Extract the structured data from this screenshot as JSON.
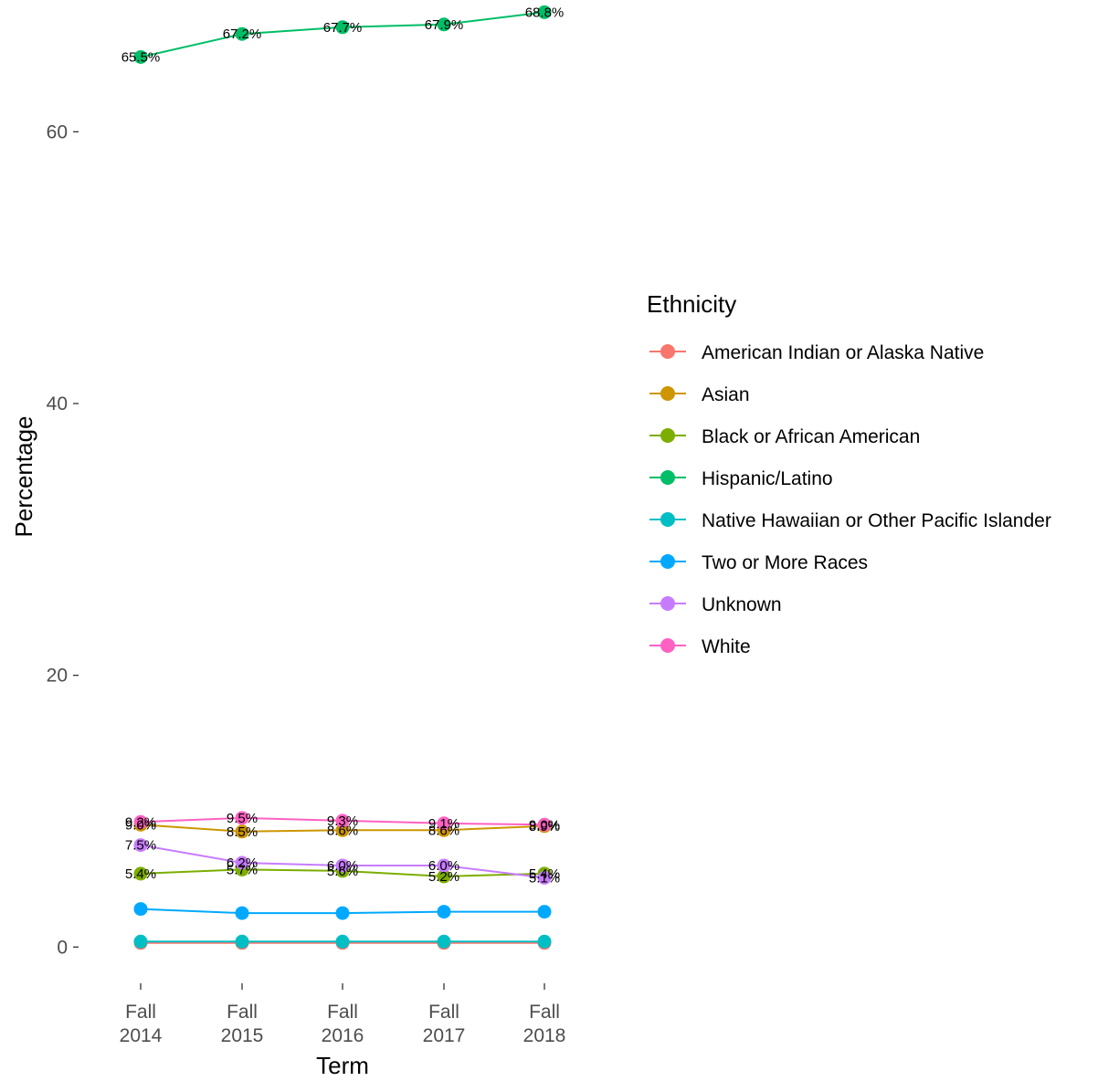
{
  "chart_data": {
    "type": "line",
    "xlabel": "Term",
    "ylabel": "Percentage",
    "categories": [
      "Fall\n2014",
      "Fall\n2015",
      "Fall\n2016",
      "Fall\n2017",
      "Fall\n2018"
    ],
    "y_ticks": [
      0,
      20,
      40,
      60
    ],
    "ylim": [
      -2.2,
      69.7
    ],
    "grid": false,
    "legend": {
      "title": "Ethnicity",
      "position": "right"
    },
    "series": [
      {
        "name": "American Indian or Alaska Native",
        "color": "#F8766D",
        "values": [
          0.3,
          0.3,
          0.3,
          0.3,
          0.3
        ],
        "labels": [
          "",
          "",
          "",
          "",
          ""
        ]
      },
      {
        "name": "Asian",
        "color": "#CD9600",
        "values": [
          9.0,
          8.5,
          8.6,
          8.6,
          8.9
        ],
        "labels": [
          "9.0%",
          "8.5%",
          "8.6%",
          "8.6%",
          "8.9%"
        ]
      },
      {
        "name": "Black or African American",
        "color": "#7CAE00",
        "values": [
          5.4,
          5.7,
          5.6,
          5.2,
          5.4
        ],
        "labels": [
          "5.4%",
          "5.7%",
          "5.6%",
          "5.2%",
          "5.4%"
        ]
      },
      {
        "name": "Hispanic/Latino",
        "color": "#00BE67",
        "values": [
          65.5,
          67.2,
          67.7,
          67.9,
          68.8
        ],
        "labels": [
          "65.5%",
          "67.2%",
          "67.7%",
          "67.9%",
          "68.8%"
        ]
      },
      {
        "name": "Native Hawaiian or Other Pacific Islander",
        "color": "#00BFC4",
        "values": [
          0.4,
          0.4,
          0.4,
          0.4,
          0.4
        ],
        "labels": [
          "",
          "",
          "",
          "",
          ""
        ]
      },
      {
        "name": "Two or More Races",
        "color": "#00A9FF",
        "values": [
          2.8,
          2.5,
          2.5,
          2.6,
          2.6
        ],
        "labels": [
          "",
          "",
          "",
          "",
          ""
        ]
      },
      {
        "name": "Unknown",
        "color": "#C77CFF",
        "values": [
          7.5,
          6.2,
          6.0,
          6.0,
          5.1
        ],
        "labels": [
          "7.5%",
          "6.2%",
          "6.0%",
          "6.0%",
          "5.1%"
        ]
      },
      {
        "name": "White",
        "color": "#FF61C3",
        "values": [
          9.2,
          9.5,
          9.3,
          9.1,
          9.0
        ],
        "labels": [
          "9.2%",
          "9.5%",
          "9.3%",
          "9.1%",
          "9.0%"
        ]
      }
    ]
  }
}
